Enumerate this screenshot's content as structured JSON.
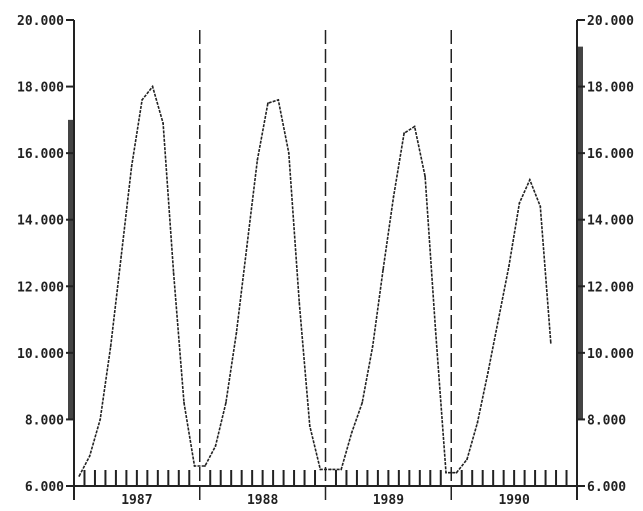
{
  "chart_data": {
    "type": "line",
    "title": "",
    "xlabel": "",
    "ylabel": "",
    "ylim": [
      6000,
      20000
    ],
    "yticks": [
      6000,
      8000,
      10000,
      12000,
      14000,
      16000,
      18000,
      20000
    ],
    "ytick_labels": [
      "6.000",
      "8.000",
      "10.000",
      "12.000",
      "14.000",
      "16.000",
      "18.000",
      "20.000"
    ],
    "xlim": [
      0,
      48
    ],
    "years": [
      {
        "label": "1987",
        "start": 0,
        "end": 12
      },
      {
        "label": "1988",
        "start": 12,
        "end": 24
      },
      {
        "label": "1989",
        "start": 24,
        "end": 36
      },
      {
        "label": "1990",
        "start": 36,
        "end": 48
      }
    ],
    "year_dividers": [
      12,
      24,
      36
    ],
    "series": [
      {
        "x": [
          0.5,
          1.5,
          2.5,
          3.5,
          4.5,
          5.5,
          6.5,
          7.5,
          8.5,
          9.5,
          10.5,
          11.5,
          12.5,
          13.5,
          14.5,
          15.5,
          16.5,
          17.5,
          18.5,
          19.5,
          20.5,
          21.5,
          22.5,
          23.5,
          24.5,
          25.5,
          26.5,
          27.5,
          28.5,
          29.5,
          30.5,
          31.5,
          32.5,
          33.5,
          34.5,
          35.5,
          36.5,
          37.5,
          38.5,
          39.5,
          40.5,
          41.5,
          42.5,
          43.5,
          44.5,
          45.5
        ],
        "values": [
          6300,
          6900,
          8000,
          10200,
          12900,
          15600,
          17600,
          18000,
          16900,
          12400,
          8500,
          6600,
          6600,
          7200,
          8500,
          10600,
          13200,
          15800,
          17500,
          17600,
          16000,
          11500,
          7800,
          6500,
          6500,
          6500,
          7600,
          8500,
          10200,
          12500,
          14700,
          16600,
          16800,
          15300,
          10700,
          6400,
          6400,
          6800,
          7900,
          9400,
          11000,
          12600,
          14500,
          15200,
          14400,
          10300
        ]
      }
    ]
  }
}
